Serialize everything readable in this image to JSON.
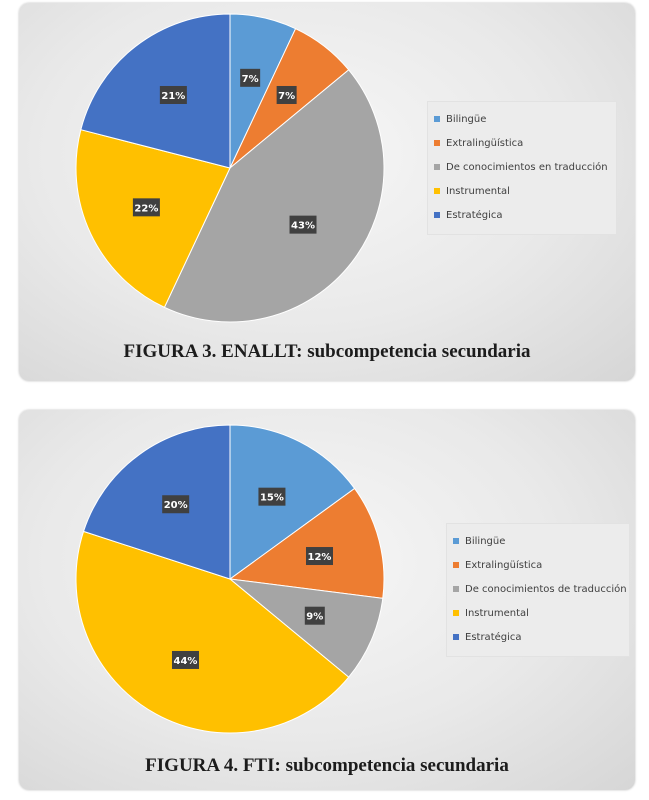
{
  "figures": [
    {
      "caption": "FIGURA 3. ENALLT: subcompetencia secundaria"
    },
    {
      "caption": "FIGURA 4. FTI: subcompetencia secundaria"
    }
  ],
  "chart_data": [
    {
      "type": "pie",
      "title": "",
      "categories": [
        "Bilingüe",
        "Extralingüística",
        "De conocimientos en traducción",
        "Instrumental",
        "Estratégica"
      ],
      "values": [
        7,
        7,
        43,
        22,
        21
      ],
      "data_labels": [
        "7%",
        "7%",
        "43%",
        "22%",
        "21%"
      ],
      "colors": [
        "#5B9BD5",
        "#ED7D31",
        "#A5A5A5",
        "#FFC000",
        "#4472C4"
      ],
      "legend_position": "right"
    },
    {
      "type": "pie",
      "title": "",
      "categories": [
        "Bilingüe",
        "Extralingüística",
        "De conocimientos de traducción",
        "Instrumental",
        "Estratégica"
      ],
      "values": [
        15,
        12,
        9,
        44,
        20
      ],
      "data_labels": [
        "15%",
        "12%",
        "9%",
        "44%",
        "20%"
      ],
      "colors": [
        "#5B9BD5",
        "#ED7D31",
        "#A5A5A5",
        "#FFC000",
        "#4472C4"
      ],
      "legend_position": "right"
    }
  ]
}
